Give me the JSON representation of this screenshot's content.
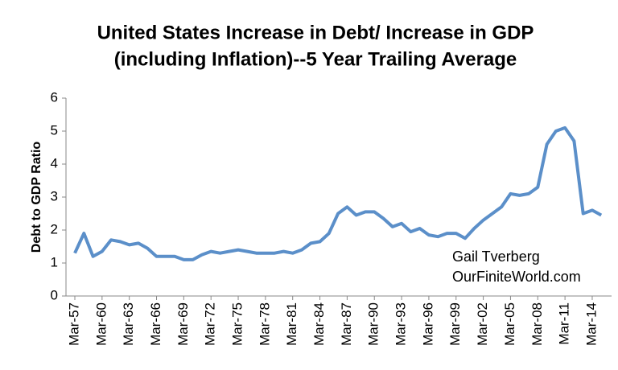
{
  "chart_data": {
    "type": "line",
    "title": [
      "United States Increase in Debt/ Increase in GDP",
      "(including Inflation)--5 Year Trailing Average"
    ],
    "y_label": "Debt to GDP Ratio",
    "annotations": [
      "Gail Tverberg",
      "OurFiniteWorld.com"
    ],
    "categories": [
      "Mar-57",
      null,
      null,
      "Mar-60",
      null,
      null,
      "Mar-63",
      null,
      null,
      "Mar-66",
      null,
      null,
      "Mar-69",
      null,
      null,
      "Mar-72",
      null,
      null,
      "Mar-75",
      null,
      null,
      "Mar-78",
      null,
      null,
      "Mar-81",
      null,
      null,
      "Mar-84",
      null,
      null,
      "Mar-87",
      null,
      null,
      "Mar-90",
      null,
      null,
      "Mar-93",
      null,
      null,
      "Mar-96",
      null,
      null,
      "Mar-99",
      null,
      null,
      "Mar-02",
      null,
      null,
      "Mar-05",
      null,
      null,
      "Mar-08",
      null,
      null,
      "Mar-11",
      null,
      null,
      "Mar-14",
      null
    ],
    "series": [
      {
        "name": "Debt to GDP Ratio",
        "color": "#5b8fc9",
        "values": [
          1.3,
          1.9,
          1.2,
          1.35,
          1.7,
          1.65,
          1.55,
          1.6,
          1.45,
          1.2,
          1.2,
          1.2,
          1.1,
          1.1,
          1.25,
          1.35,
          1.3,
          1.35,
          1.4,
          1.35,
          1.3,
          1.3,
          1.3,
          1.35,
          1.3,
          1.4,
          1.6,
          1.65,
          1.9,
          2.5,
          2.7,
          2.45,
          2.55,
          2.55,
          2.35,
          2.1,
          2.2,
          1.95,
          2.05,
          1.85,
          1.8,
          1.9,
          1.9,
          1.75,
          2.05,
          2.3,
          2.5,
          2.7,
          3.1,
          3.05,
          3.1,
          3.3,
          4.6,
          5.0,
          5.1,
          4.7,
          2.5,
          2.6,
          2.45
        ]
      }
    ],
    "ylim": [
      0,
      6
    ],
    "yticks": [
      0,
      1,
      2,
      3,
      4,
      5,
      6
    ],
    "grid": false
  }
}
